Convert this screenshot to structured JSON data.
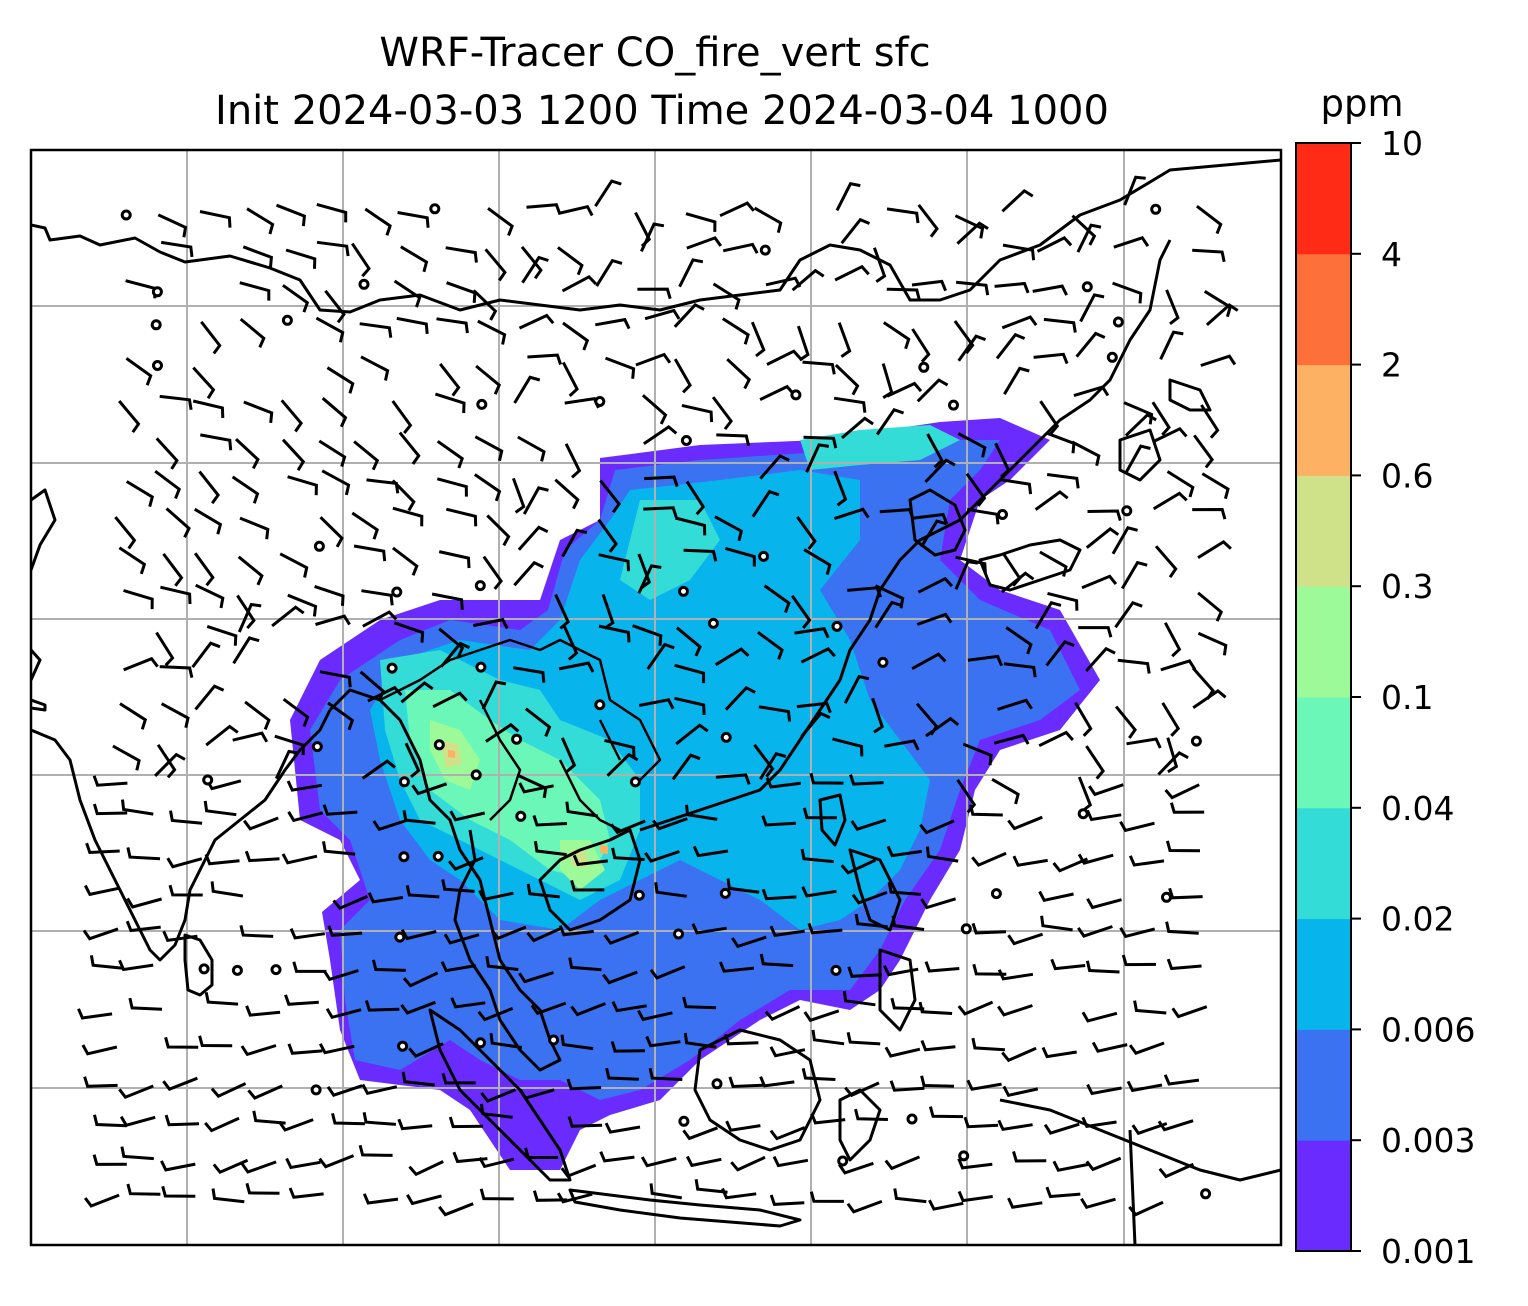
{
  "title": {
    "line1": "WRF-Tracer CO_fire_vert sfc",
    "line2": "Init 2024-03-03 1200 Time 2024-03-04 1000"
  },
  "colorbar": {
    "unit": "ppm",
    "levels": [
      "0.001",
      "0.003",
      "0.006",
      "0.02",
      "0.04",
      "0.1",
      "0.3",
      "0.6",
      "2",
      "4",
      "10"
    ],
    "colors": [
      "#6a2bff",
      "#3a72f2",
      "#07b4ec",
      "#33dcd6",
      "#6af7b8",
      "#9cfb98",
      "#cfe28a",
      "#fdb163",
      "#fd7039",
      "#ff2b17"
    ]
  },
  "map": {
    "grid": true,
    "features": [
      "coastlines",
      "country-borders",
      "wind-barbs",
      "calm-circles"
    ]
  }
}
